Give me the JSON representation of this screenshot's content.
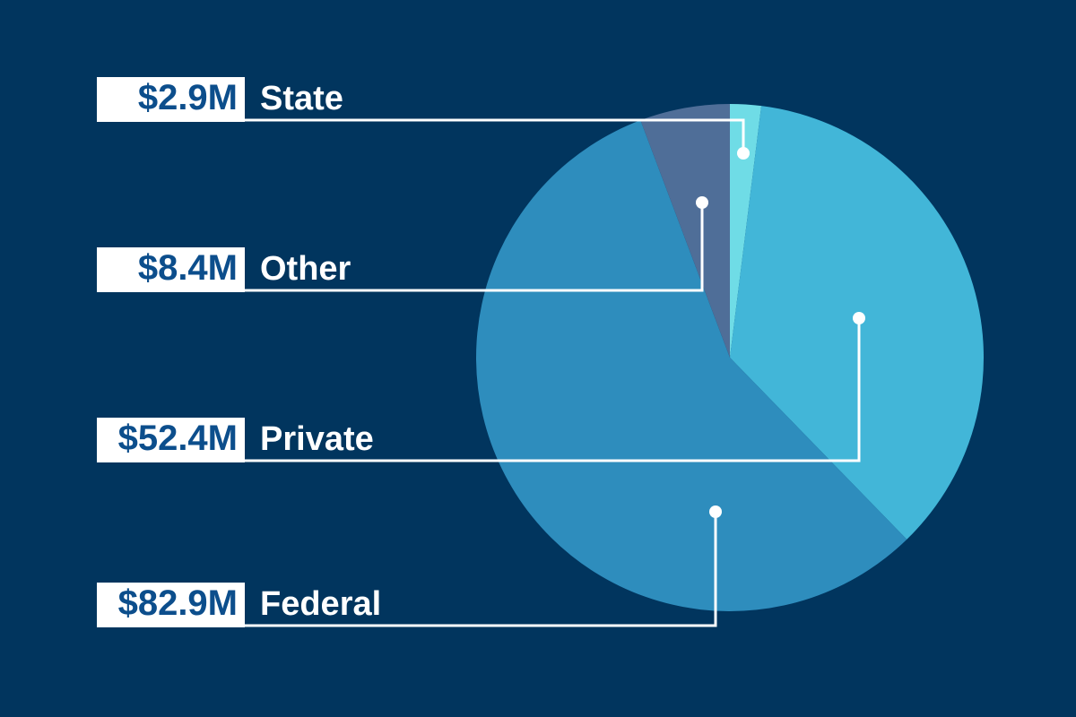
{
  "chart_data": {
    "type": "pie",
    "title": "",
    "units": "$M",
    "slices": [
      {
        "name": "State",
        "value": 2.9,
        "label": "$2.9M",
        "color": "#6fdce6"
      },
      {
        "name": "Private",
        "value": 52.4,
        "label": "$52.4M",
        "color": "#42b6d8"
      },
      {
        "name": "Federal",
        "value": 82.9,
        "label": "$82.9M",
        "color": "#2e8dbd"
      },
      {
        "name": "Other",
        "value": 8.4,
        "label": "$8.4M",
        "color": "#4f6e98"
      }
    ],
    "legend_order": [
      "State",
      "Other",
      "Private",
      "Federal"
    ],
    "start_angle_deg": 0,
    "direction": "clockwise"
  },
  "colors": {
    "background": "#01355e",
    "label_box": "#ffffff",
    "value_text": "#0c4e8c",
    "name_text": "#ffffff",
    "leader_line": "#ffffff"
  }
}
